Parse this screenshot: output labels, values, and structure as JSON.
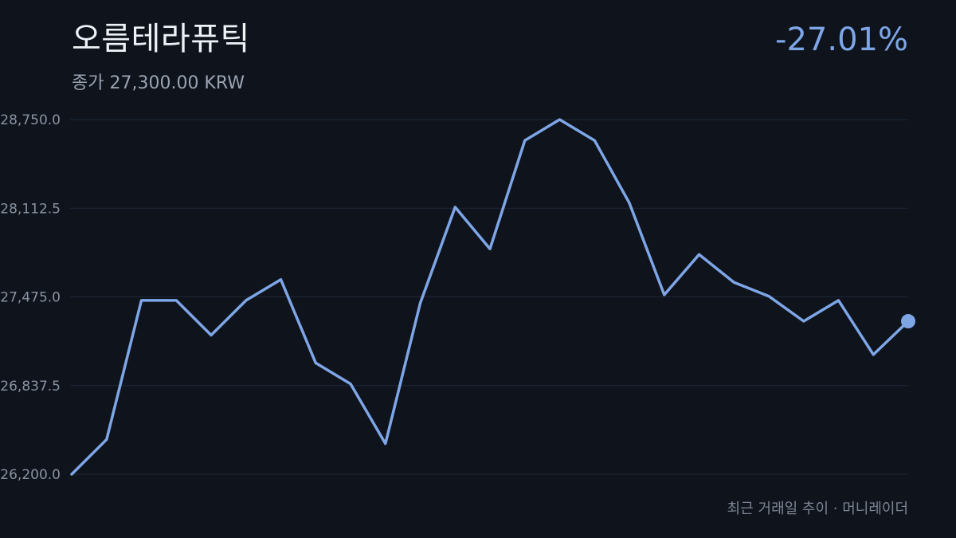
{
  "header": {
    "title": "오름테라퓨틱",
    "subtitle": "종가 27,300.00 KRW",
    "change": "-27.01%"
  },
  "footer": {
    "caption": "최근 거래일 추이 · 머니레이더"
  },
  "colors": {
    "background": "#0e131c",
    "line": "#7ea6e6",
    "grid": "#1f2836",
    "tick_label": "#8a93a1"
  },
  "chart_data": {
    "type": "line",
    "title": "",
    "xlabel": "",
    "ylabel": "",
    "ylim": [
      26200.0,
      28750.0
    ],
    "yticks": [
      "28,750.0",
      "28,112.5",
      "27,475.0",
      "26,837.5",
      "26,200.0"
    ],
    "ytick_values": [
      28750.0,
      28112.5,
      27475.0,
      26837.5,
      26200.0
    ],
    "grid": true,
    "legend": "none",
    "series": [
      {
        "values": [
          26200,
          26450,
          27450,
          27450,
          27200,
          27450,
          27600,
          27000,
          26850,
          26420,
          27430,
          28120,
          27820,
          28600,
          28750,
          28600,
          28150,
          27490,
          27780,
          27580,
          27480,
          27300,
          27450,
          27060,
          27300
        ]
      }
    ]
  }
}
